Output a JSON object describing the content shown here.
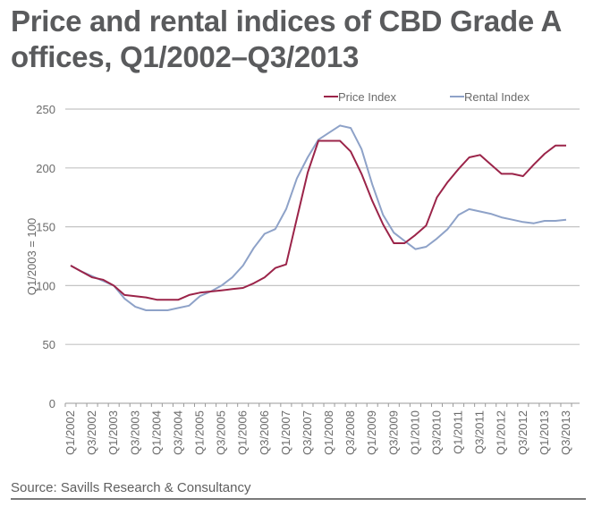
{
  "title": "Price and rental indices of CBD Grade A offices, Q1/2002–Q3/2013",
  "source": "Source: Savills Research & Consultancy",
  "chart_data": {
    "type": "line",
    "title": "Price and rental indices of CBD Grade A offices, Q1/2002–Q3/2013",
    "xlabel": "",
    "ylabel": "Q1/2003 = 100",
    "ylim": [
      0,
      250
    ],
    "yticks": [
      0,
      50,
      100,
      150,
      200,
      250
    ],
    "grid": true,
    "legend_position": "top-right",
    "x": [
      "Q1/2002",
      "Q2/2002",
      "Q3/2002",
      "Q4/2002",
      "Q1/2003",
      "Q2/2003",
      "Q3/2003",
      "Q4/2003",
      "Q1/2004",
      "Q2/2004",
      "Q3/2004",
      "Q4/2004",
      "Q1/2005",
      "Q2/2005",
      "Q3/2005",
      "Q4/2005",
      "Q1/2006",
      "Q2/2006",
      "Q3/2006",
      "Q4/2006",
      "Q1/2007",
      "Q2/2007",
      "Q3/2007",
      "Q4/2007",
      "Q1/2008",
      "Q2/2008",
      "Q3/2008",
      "Q4/2008",
      "Q1/2009",
      "Q2/2009",
      "Q3/2009",
      "Q4/2009",
      "Q1/2010",
      "Q2/2010",
      "Q3/2010",
      "Q4/2010",
      "Q1/2011",
      "Q2/2011",
      "Q3/2011",
      "Q4/2011",
      "Q1/2012",
      "Q2/2012",
      "Q3/2012",
      "Q4/2012",
      "Q1/2013",
      "Q2/2013",
      "Q3/2013"
    ],
    "xtick_labels": [
      "Q1/2002",
      "Q3/2002",
      "Q1/2003",
      "Q3/2003",
      "Q1/2004",
      "Q3/2004",
      "Q1/2005",
      "Q3/2005",
      "Q1/2006",
      "Q3/2006",
      "Q1/2007",
      "Q3/2007",
      "Q1/2008",
      "Q3/2008",
      "Q1/2009",
      "Q3/2009",
      "Q1/2010",
      "Q3/2010",
      "Q1/2011",
      "Q3/2011",
      "Q1/2012",
      "Q3/2012",
      "Q1/2013",
      "Q3/2013"
    ],
    "series": [
      {
        "name": "Price Index",
        "color": "#9b2449",
        "values": [
          117,
          112,
          107,
          105,
          100,
          92,
          91,
          90,
          88,
          88,
          88,
          92,
          94,
          95,
          96,
          97,
          98,
          102,
          107,
          115,
          118,
          157,
          196,
          223,
          223,
          223,
          214,
          195,
          172,
          152,
          136,
          136,
          143,
          151,
          175,
          188,
          199,
          209,
          211,
          203,
          195,
          195,
          193,
          203,
          212,
          219,
          219
        ]
      },
      {
        "name": "Rental Index",
        "color": "#8ea2c8",
        "values": [
          117,
          112,
          108,
          104,
          100,
          89,
          82,
          79,
          79,
          79,
          81,
          83,
          91,
          95,
          100,
          107,
          117,
          132,
          144,
          148,
          165,
          191,
          209,
          224,
          230,
          236,
          234,
          216,
          186,
          160,
          145,
          138,
          131,
          133,
          140,
          148,
          160,
          165,
          163,
          161,
          158,
          156,
          154,
          153,
          155,
          155,
          156
        ]
      }
    ]
  }
}
